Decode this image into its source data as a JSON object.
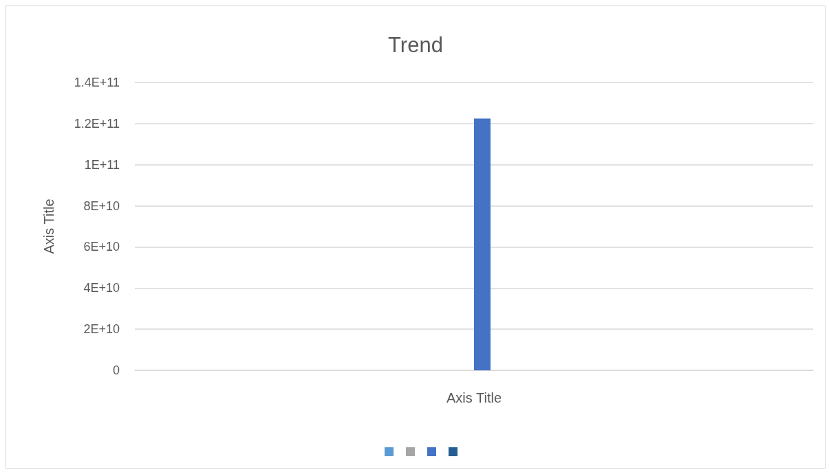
{
  "chart_data": {
    "type": "bar",
    "title": "Trend",
    "xlabel": "Axis Title",
    "ylabel": "Axis Title",
    "categories": [
      null
    ],
    "series": [
      {
        "color": "#5b9bd5",
        "values": [
          0
        ]
      },
      {
        "color": "#a5a5a5",
        "values": [
          0
        ]
      },
      {
        "color": "#4472c4",
        "values": [
          122500000000
        ]
      },
      {
        "color": "#255e91",
        "values": [
          0
        ]
      }
    ],
    "ylim": [
      0,
      140000000000
    ],
    "yticks": [
      0,
      {
        "value": 20000000000,
        "label": "2E+10"
      },
      {
        "value": 40000000000,
        "label": "4E+10"
      },
      {
        "value": 60000000000,
        "label": "6E+10"
      },
      {
        "value": 80000000000,
        "label": "8E+10"
      },
      {
        "value": 100000000000,
        "label": "1E+11"
      },
      {
        "value": 120000000000,
        "label": "1.2E+11"
      },
      {
        "value": 140000000000,
        "label": "1.4E+11"
      }
    ],
    "grid": "y",
    "tick_labels": "y"
  }
}
